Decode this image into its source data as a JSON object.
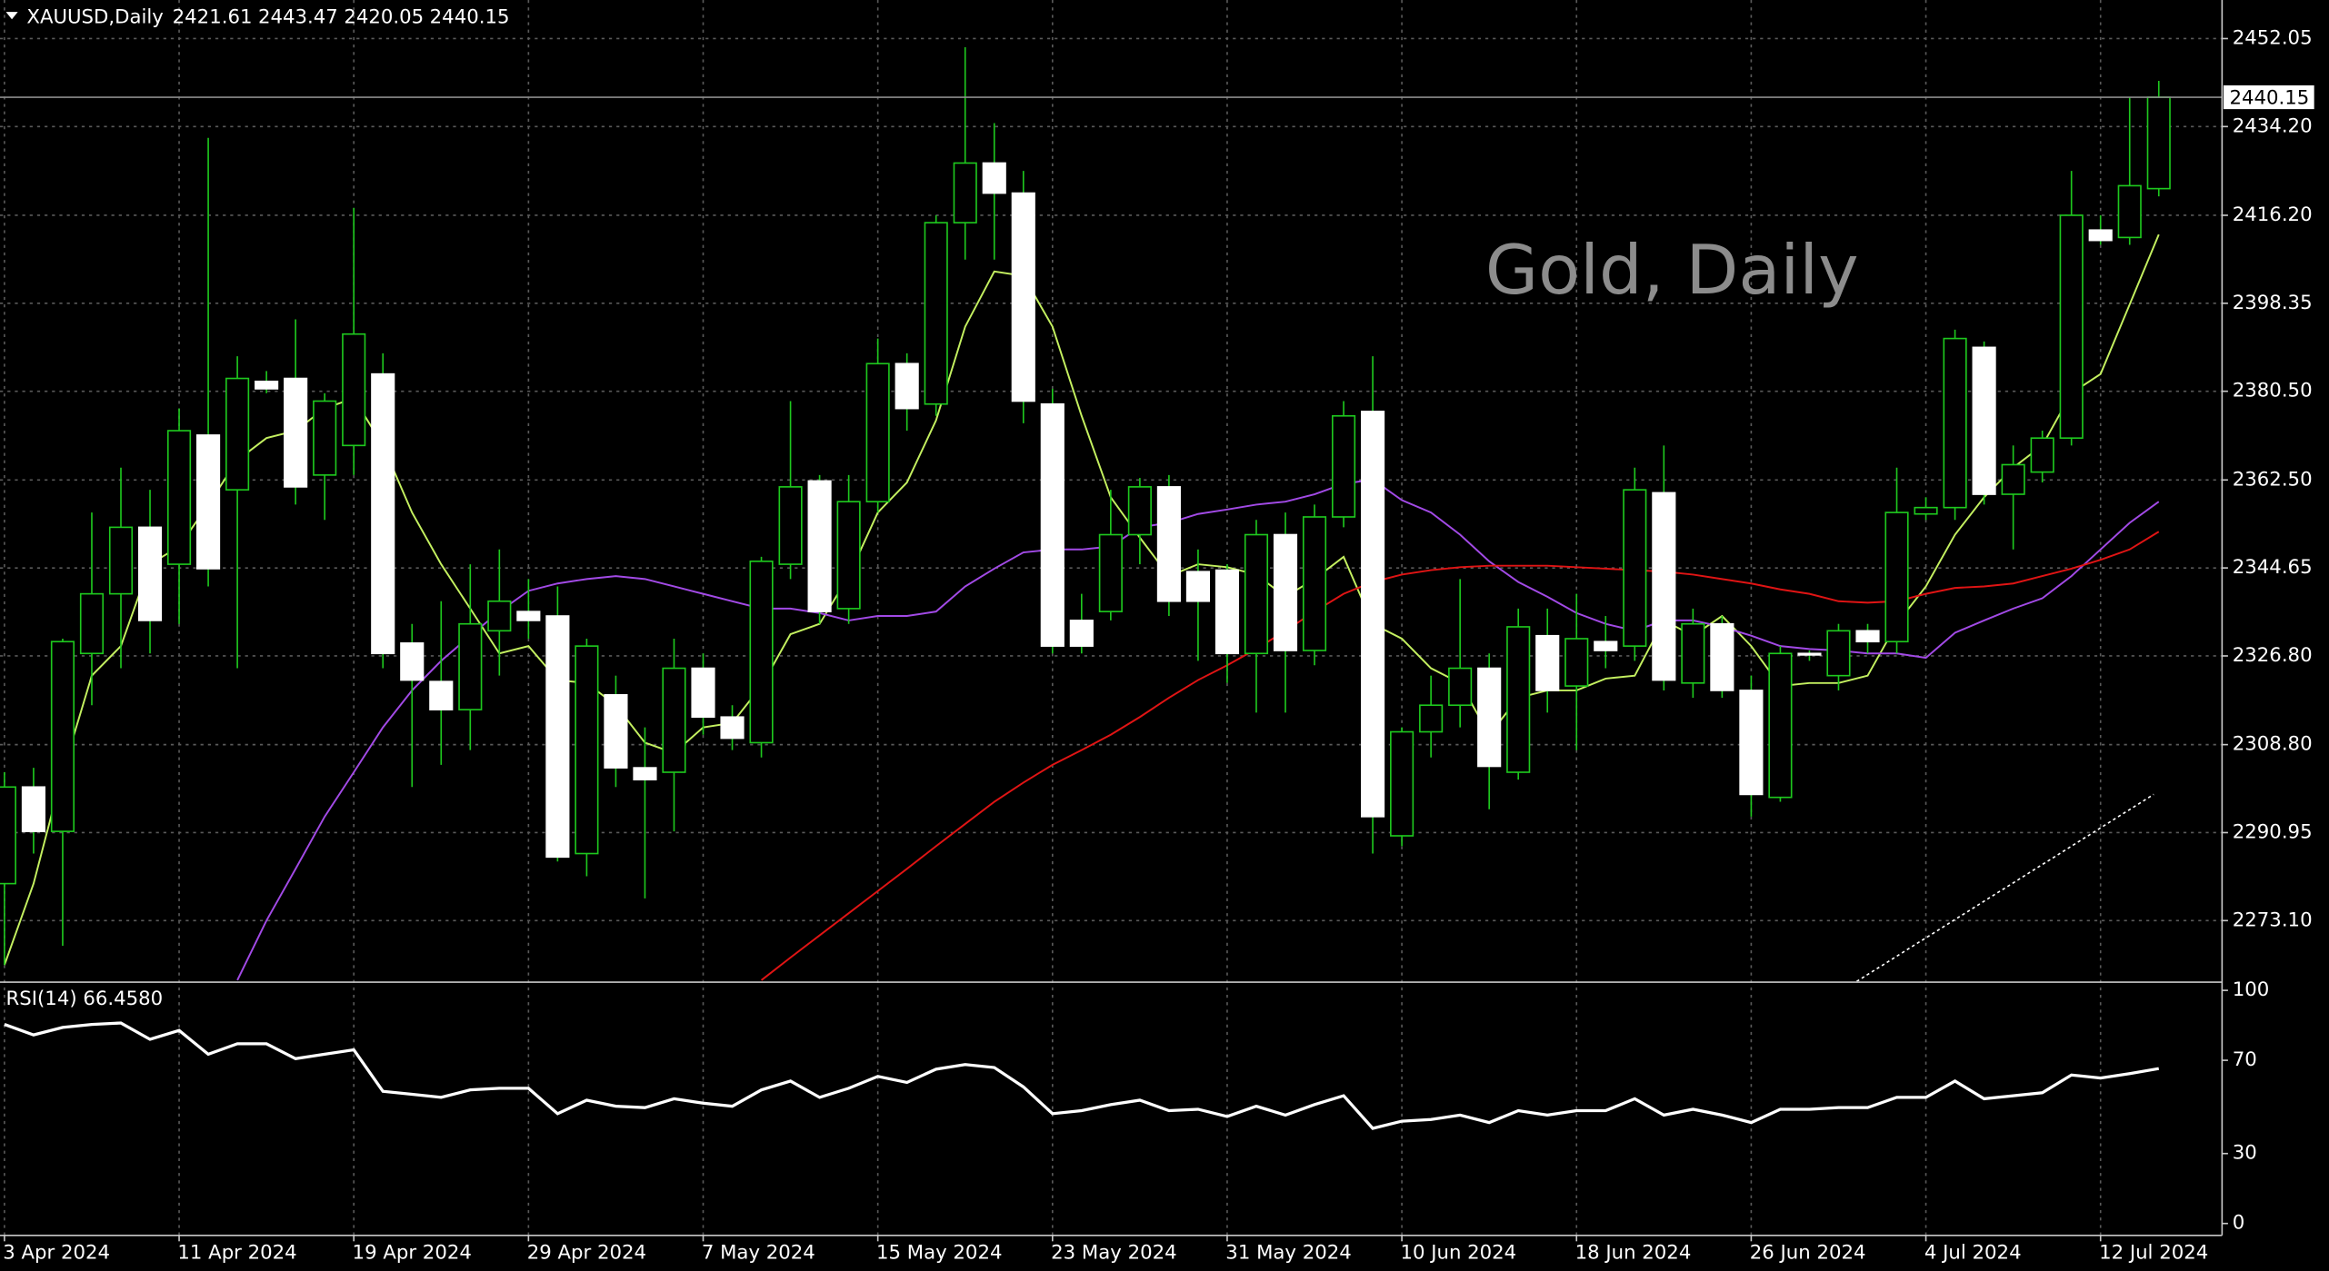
{
  "chart_data": [
    {
      "type": "candlestick",
      "title": "XAUUSD,Daily",
      "watermark": "Gold, Daily",
      "categories": [
        "3 Apr 2024",
        null,
        null,
        null,
        null,
        null,
        "11 Apr 2024",
        null,
        null,
        null,
        null,
        null,
        "19 Apr 2024",
        null,
        null,
        null,
        null,
        null,
        "29 Apr 2024",
        null,
        null,
        null,
        null,
        null,
        "7 May 2024",
        null,
        null,
        null,
        null,
        null,
        "15 May 2024",
        null,
        null,
        null,
        null,
        null,
        "23 May 2024",
        null,
        null,
        null,
        null,
        null,
        "31 May 2024",
        null,
        null,
        null,
        null,
        null,
        "10 Jun 2024",
        null,
        null,
        null,
        null,
        null,
        "18 Jun 2024",
        null,
        null,
        null,
        null,
        null,
        "26 Jun 2024",
        null,
        null,
        null,
        null,
        null,
        "4 Jul 2024",
        null,
        null,
        null,
        null,
        null,
        "12 Jul 2024",
        null,
        null
      ],
      "open": [
        2280.6,
        2300.2,
        2291.2,
        2327.3,
        2339.4,
        2352.9,
        2345.4,
        2371.6,
        2360.5,
        2382.5,
        2383.1,
        2363.5,
        2369.5,
        2384.0,
        2329.4,
        2321.6,
        2315.9,
        2331.9,
        2335.8,
        2334.9,
        2286.7,
        2318.9,
        2304.1,
        2303.2,
        2324.3,
        2314.4,
        2309.2,
        2345.4,
        2362.3,
        2336.4,
        2358.1,
        2386.1,
        2377.9,
        2414.7,
        2426.8,
        2420.7,
        2377.9,
        2334.0,
        2335.8,
        2351.4,
        2361.1,
        2343.9,
        2344.2,
        2327.3,
        2351.4,
        2327.9,
        2355.0,
        2376.4,
        2290.3,
        2311.4,
        2316.8,
        2324.3,
        2303.2,
        2330.9,
        2320.7,
        2329.7,
        2328.8,
        2359.9,
        2321.3,
        2333.3,
        2319.8,
        2298.1,
        2327.3,
        2322.8,
        2331.9,
        2329.7,
        2355.6,
        2356.9,
        2389.4,
        2359.6,
        2364.1,
        2371.0,
        2413.2,
        2411.7,
        2421.61
      ],
      "high": [
        2303.2,
        2304.1,
        2330.3,
        2355.9,
        2365.0,
        2360.5,
        2377.0,
        2431.9,
        2387.6,
        2384.6,
        2395.1,
        2380.1,
        2417.7,
        2388.2,
        2333.3,
        2337.9,
        2345.4,
        2348.4,
        2342.4,
        2340.9,
        2330.3,
        2322.8,
        2312.3,
        2330.3,
        2327.3,
        2316.8,
        2346.9,
        2378.5,
        2363.5,
        2363.5,
        2391.2,
        2388.2,
        2416.2,
        2450.3,
        2434.9,
        2425.2,
        2381.0,
        2339.4,
        2360.5,
        2362.9,
        2363.5,
        2348.4,
        2345.4,
        2354.4,
        2355.9,
        2357.5,
        2378.5,
        2387.6,
        2312.3,
        2322.8,
        2342.4,
        2327.3,
        2336.4,
        2336.4,
        2339.4,
        2334.9,
        2365.0,
        2369.5,
        2336.4,
        2334.9,
        2322.8,
        2328.8,
        2327.9,
        2333.3,
        2333.3,
        2365.0,
        2359.0,
        2393.0,
        2390.6,
        2369.5,
        2372.5,
        2425.2,
        2416.2,
        2440.2,
        2443.47
      ],
      "low": [
        2264.1,
        2286.7,
        2268.0,
        2316.8,
        2324.3,
        2327.3,
        2333.3,
        2340.9,
        2324.3,
        2380.1,
        2357.5,
        2354.4,
        2363.5,
        2324.3,
        2300.2,
        2304.7,
        2307.7,
        2322.8,
        2330.3,
        2285.1,
        2282.1,
        2300.2,
        2277.6,
        2291.2,
        2310.8,
        2307.7,
        2306.2,
        2342.4,
        2333.3,
        2333.3,
        2355.9,
        2372.5,
        2375.5,
        2407.2,
        2407.2,
        2374.0,
        2327.3,
        2327.3,
        2334.0,
        2345.4,
        2334.9,
        2325.8,
        2321.3,
        2315.3,
        2315.3,
        2324.9,
        2352.9,
        2286.7,
        2288.2,
        2306.2,
        2312.3,
        2295.7,
        2301.7,
        2315.3,
        2307.7,
        2324.3,
        2325.8,
        2319.8,
        2318.3,
        2318.3,
        2294.2,
        2297.2,
        2325.8,
        2319.8,
        2327.3,
        2327.3,
        2354.4,
        2354.4,
        2357.5,
        2348.4,
        2362.0,
        2369.5,
        2410.2,
        2410.2,
        2420.05
      ],
      "close": [
        2300.2,
        2291.2,
        2329.7,
        2339.4,
        2352.9,
        2334.0,
        2372.5,
        2344.5,
        2383.1,
        2381.0,
        2361.1,
        2378.5,
        2392.1,
        2327.3,
        2321.9,
        2315.9,
        2333.3,
        2337.9,
        2334.0,
        2286.0,
        2328.8,
        2304.1,
        2301.7,
        2324.3,
        2314.4,
        2310.1,
        2346.0,
        2361.1,
        2335.8,
        2358.1,
        2386.1,
        2377.0,
        2414.7,
        2426.8,
        2420.7,
        2378.5,
        2328.8,
        2328.8,
        2351.4,
        2361.1,
        2337.9,
        2337.9,
        2327.3,
        2351.4,
        2327.9,
        2355.0,
        2375.5,
        2294.2,
        2311.4,
        2316.8,
        2324.3,
        2304.4,
        2332.7,
        2319.8,
        2330.3,
        2327.9,
        2360.5,
        2321.9,
        2333.3,
        2319.8,
        2298.7,
        2327.3,
        2327.0,
        2331.9,
        2329.7,
        2355.9,
        2356.9,
        2391.2,
        2359.6,
        2365.6,
        2371.0,
        2416.2,
        2411.1,
        2422.2,
        2440.15
      ],
      "up_color": "#1ec81e",
      "down_color": "#ffffff",
      "series": [
        {
          "color": "#c4f060",
          "values": [
            2264.1,
            2280.6,
            2303.2,
            2322.8,
            2328.8,
            2345.4,
            2349.0,
            2357.5,
            2366.5,
            2371.0,
            2372.5,
            2377.0,
            2379.1,
            2369.5,
            2355.9,
            2345.4,
            2336.4,
            2327.3,
            2328.8,
            2321.9,
            2321.3,
            2316.8,
            2309.2,
            2307.1,
            2312.3,
            2313.2,
            2320.7,
            2331.2,
            2333.3,
            2343.0,
            2355.9,
            2362.0,
            2374.6,
            2393.6,
            2404.8,
            2403.9,
            2393.6,
            2375.5,
            2359.0,
            2350.8,
            2343.0,
            2345.4,
            2344.8,
            2343.3,
            2338.8,
            2342.4,
            2346.9,
            2333.3,
            2330.3,
            2324.3,
            2321.3,
            2310.8,
            2318.3,
            2319.8,
            2319.8,
            2322.2,
            2322.8,
            2334.0,
            2330.9,
            2334.9,
            2328.8,
            2320.7,
            2321.3,
            2321.3,
            2322.8,
            2333.3,
            2340.9,
            2351.4,
            2359.0,
            2365.0,
            2369.5,
            2380.1,
            2384.0,
            2398.1,
            2412.3
          ]
        },
        {
          "color": "#a24ae6",
          "values": [
            null,
            null,
            null,
            null,
            null,
            null,
            null,
            null,
            2261.0,
            2273.1,
            2283.6,
            2294.2,
            2303.2,
            2312.3,
            2319.8,
            2325.8,
            2330.9,
            2335.8,
            2340.0,
            2341.5,
            2342.4,
            2343.0,
            2342.4,
            2340.9,
            2339.4,
            2337.9,
            2336.4,
            2336.4,
            2335.5,
            2334.0,
            2334.9,
            2334.9,
            2335.8,
            2340.9,
            2344.5,
            2347.8,
            2348.4,
            2348.4,
            2349.0,
            2352.9,
            2353.8,
            2355.6,
            2356.5,
            2357.5,
            2358.1,
            2359.6,
            2361.7,
            2362.6,
            2358.4,
            2355.9,
            2351.4,
            2346.0,
            2341.8,
            2338.8,
            2335.5,
            2333.3,
            2331.9,
            2334.0,
            2334.0,
            2332.7,
            2330.9,
            2328.8,
            2328.2,
            2327.9,
            2327.3,
            2327.3,
            2326.4,
            2331.5,
            2334.0,
            2336.4,
            2338.5,
            2343.0,
            2348.4,
            2353.8,
            2358.1
          ]
        },
        {
          "color": "#e01414",
          "values": [
            null,
            null,
            null,
            null,
            null,
            null,
            null,
            null,
            null,
            null,
            null,
            null,
            null,
            null,
            null,
            null,
            null,
            null,
            null,
            null,
            null,
            null,
            null,
            null,
            null,
            null,
            2261.0,
            2265.6,
            2270.1,
            2274.6,
            2279.1,
            2283.6,
            2288.2,
            2292.7,
            2297.2,
            2301.1,
            2304.7,
            2307.7,
            2310.8,
            2314.4,
            2318.3,
            2321.9,
            2324.9,
            2328.2,
            2331.9,
            2335.8,
            2339.4,
            2341.8,
            2343.3,
            2344.2,
            2344.8,
            2345.1,
            2345.1,
            2345.1,
            2344.8,
            2344.5,
            2344.2,
            2343.9,
            2343.3,
            2342.4,
            2341.5,
            2340.3,
            2339.4,
            2337.9,
            2337.6,
            2337.9,
            2339.4,
            2340.6,
            2340.9,
            2341.5,
            2343.0,
            2344.5,
            2346.3,
            2348.4,
            2352.0
          ]
        }
      ],
      "ylim": [
        2260.75,
        2459.88
      ],
      "yticks": [
        2452.05,
        {
          "value": 2434.2,
          "label": "2434.20"
        },
        {
          "value": 2416.2,
          "label": "2416.20"
        },
        2398.35,
        {
          "value": 2380.5,
          "label": "2380.50"
        },
        {
          "value": 2362.5,
          "label": "2362.50"
        },
        2344.65,
        {
          "value": 2326.8,
          "label": "2326.80"
        },
        {
          "value": 2308.8,
          "label": "2308.80"
        },
        2290.95,
        {
          "value": 2273.1,
          "label": "2273.10"
        }
      ],
      "grid": true
    },
    {
      "type": "line",
      "title": "RSI(14) 66.4580",
      "color": "#ffffff",
      "values": [
        85.4,
        80.9,
        84.1,
        85.4,
        86.0,
        79.0,
        82.8,
        72.6,
        77.1,
        77.1,
        70.7,
        72.6,
        74.5,
        56.7,
        55.4,
        54.1,
        57.3,
        58.0,
        58.0,
        47.1,
        52.9,
        50.3,
        49.7,
        53.5,
        51.6,
        50.3,
        57.3,
        61.1,
        54.1,
        58.0,
        63.1,
        60.5,
        66.2,
        68.2,
        66.9,
        58.6,
        47.1,
        48.4,
        51.0,
        52.9,
        48.4,
        49.0,
        45.9,
        50.3,
        46.5,
        51.0,
        54.8,
        40.8,
        43.9,
        44.6,
        46.5,
        43.3,
        48.4,
        46.5,
        48.4,
        48.4,
        53.5,
        46.5,
        49.0,
        46.5,
        43.3,
        49.0,
        49.0,
        49.7,
        49.7,
        54.1,
        54.1,
        61.1,
        53.5,
        54.8,
        56.1,
        63.7,
        62.4,
        64.3,
        66.458
      ],
      "ylim": [
        0,
        100
      ],
      "yticks": [
        100,
        70,
        30,
        0
      ]
    }
  ]
}
